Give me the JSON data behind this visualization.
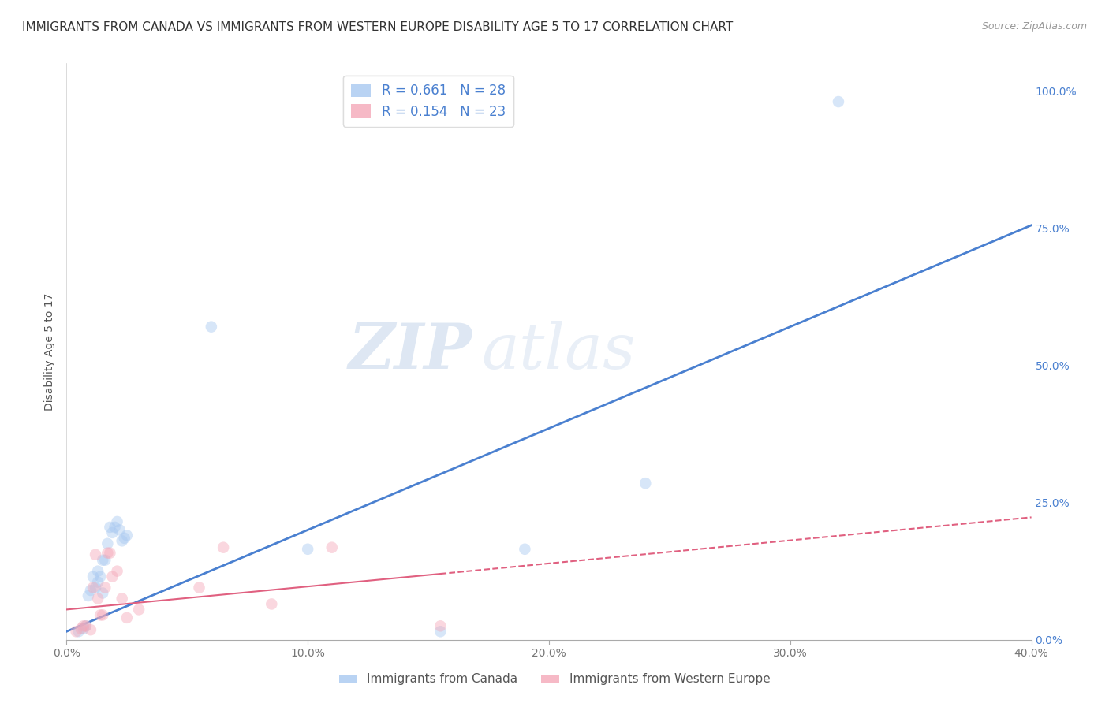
{
  "title": "IMMIGRANTS FROM CANADA VS IMMIGRANTS FROM WESTERN EUROPE DISABILITY AGE 5 TO 17 CORRELATION CHART",
  "source": "Source: ZipAtlas.com",
  "ylabel": "Disability Age 5 to 17",
  "xlim": [
    0.0,
    0.4
  ],
  "ylim": [
    0.0,
    1.05
  ],
  "xticks": [
    0.0,
    0.1,
    0.2,
    0.3,
    0.4
  ],
  "xticklabels": [
    "0.0%",
    "10.0%",
    "20.0%",
    "30.0%",
    "40.0%"
  ],
  "yticks_right": [
    0.0,
    0.25,
    0.5,
    0.75,
    1.0
  ],
  "yticklabels_right": [
    "0.0%",
    "25.0%",
    "50.0%",
    "75.0%",
    "100.0%"
  ],
  "canada_R": 0.661,
  "canada_N": 28,
  "western_europe_R": 0.154,
  "western_europe_N": 23,
  "canada_color": "#A8C8F0",
  "western_europe_color": "#F4A8B8",
  "canada_line_color": "#4A80D0",
  "western_europe_line_color": "#E06080",
  "legend_label_canada": "Immigrants from Canada",
  "legend_label_europe": "Immigrants from Western Europe",
  "watermark_zip": "ZIP",
  "watermark_atlas": "atlas",
  "canada_x": [
    0.005,
    0.007,
    0.008,
    0.009,
    0.01,
    0.011,
    0.012,
    0.013,
    0.013,
    0.014,
    0.015,
    0.015,
    0.016,
    0.017,
    0.018,
    0.019,
    0.02,
    0.021,
    0.022,
    0.023,
    0.024,
    0.025,
    0.06,
    0.1,
    0.155,
    0.19,
    0.24,
    0.32
  ],
  "canada_y": [
    0.015,
    0.02,
    0.025,
    0.08,
    0.09,
    0.115,
    0.095,
    0.105,
    0.125,
    0.115,
    0.145,
    0.085,
    0.145,
    0.175,
    0.205,
    0.195,
    0.205,
    0.215,
    0.2,
    0.18,
    0.185,
    0.19,
    0.57,
    0.165,
    0.015,
    0.165,
    0.285,
    0.98
  ],
  "europe_x": [
    0.004,
    0.006,
    0.007,
    0.008,
    0.01,
    0.011,
    0.012,
    0.013,
    0.014,
    0.015,
    0.016,
    0.017,
    0.018,
    0.019,
    0.021,
    0.023,
    0.025,
    0.03,
    0.055,
    0.065,
    0.085,
    0.11,
    0.155
  ],
  "europe_y": [
    0.015,
    0.02,
    0.025,
    0.025,
    0.018,
    0.095,
    0.155,
    0.075,
    0.045,
    0.045,
    0.095,
    0.158,
    0.158,
    0.115,
    0.125,
    0.075,
    0.04,
    0.055,
    0.095,
    0.168,
    0.065,
    0.168,
    0.025
  ],
  "canada_reg_intercept": 0.015,
  "canada_reg_slope": 1.85,
  "europe_reg_intercept": 0.055,
  "europe_reg_slope": 0.42,
  "title_fontsize": 11,
  "axis_label_fontsize": 10,
  "tick_fontsize": 10,
  "legend_fontsize": 12,
  "dot_size": 110,
  "dot_alpha": 0.45,
  "background_color": "#FFFFFF",
  "grid_color": "#CCCCCC",
  "title_color": "#333333",
  "right_axis_color": "#4A80D0",
  "tick_color": "#777777"
}
